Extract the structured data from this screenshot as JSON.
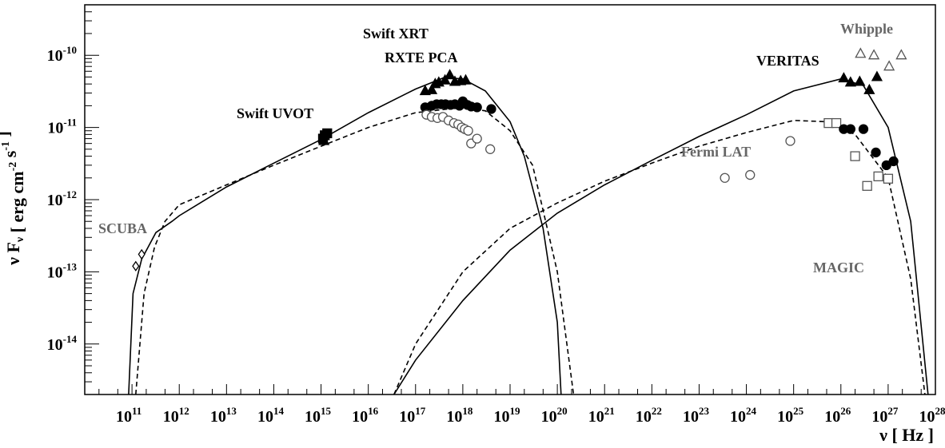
{
  "chart_data": {
    "type": "scatter",
    "xscale": "log",
    "yscale": "log",
    "xlim": [
      10000000000.0,
      1e+28
    ],
    "ylim": [
      2e-15,
      5e-10
    ],
    "grid": false,
    "legend": "none",
    "xlabel": "ν [ Hz ]",
    "ylabel": "ν F_ν [ erg cm^-2 s^-1 ]",
    "x_ticks": [
      {
        "exp": 11,
        "label": "10",
        "sup": "11"
      },
      {
        "exp": 12,
        "label": "10",
        "sup": "12"
      },
      {
        "exp": 13,
        "label": "10",
        "sup": "13"
      },
      {
        "exp": 14,
        "label": "10",
        "sup": "14"
      },
      {
        "exp": 15,
        "label": "10",
        "sup": "15"
      },
      {
        "exp": 16,
        "label": "10",
        "sup": "16"
      },
      {
        "exp": 17,
        "label": "10",
        "sup": "17"
      },
      {
        "exp": 18,
        "label": "10",
        "sup": "18"
      },
      {
        "exp": 19,
        "label": "10",
        "sup": "19"
      },
      {
        "exp": 20,
        "label": "10",
        "sup": "20"
      },
      {
        "exp": 21,
        "label": "10",
        "sup": "21"
      },
      {
        "exp": 22,
        "label": "10",
        "sup": "22"
      },
      {
        "exp": 23,
        "label": "10",
        "sup": "23"
      },
      {
        "exp": 24,
        "label": "10",
        "sup": "24"
      },
      {
        "exp": 25,
        "label": "10",
        "sup": "25"
      },
      {
        "exp": 26,
        "label": "10",
        "sup": "26"
      },
      {
        "exp": 27,
        "label": "10",
        "sup": "27"
      },
      {
        "exp": 28,
        "label": "10",
        "sup": "28"
      }
    ],
    "y_ticks": [
      {
        "exp": -14,
        "label": "10",
        "sup": "-14"
      },
      {
        "exp": -13,
        "label": "10",
        "sup": "-13"
      },
      {
        "exp": -12,
        "label": "10",
        "sup": "-12"
      },
      {
        "exp": -11,
        "label": "10",
        "sup": "-11"
      },
      {
        "exp": -10,
        "label": "10",
        "sup": "-10"
      }
    ],
    "annotations": [
      {
        "text": "SCUBA",
        "color": "#666666"
      },
      {
        "text": "Swift UVOT",
        "color": "#000000"
      },
      {
        "text": "Swift XRT",
        "color": "#000000"
      },
      {
        "text": "RXTE PCA",
        "color": "#000000"
      },
      {
        "text": "Fermi LAT",
        "color": "#666666"
      },
      {
        "text": "VERITAS",
        "color": "#000000"
      },
      {
        "text": "Whipple",
        "color": "#666666"
      },
      {
        "text": "MAGIC",
        "color": "#666666"
      }
    ],
    "series": [
      {
        "marker": "diamond-open",
        "color": "#000000",
        "points": [
          [
            120000000000.0,
            1.2e-13
          ],
          [
            160000000000.0,
            1.75e-13
          ]
        ]
      },
      {
        "marker": "square-filled",
        "color": "#000000",
        "points": [
          [
            1100000000000000.0,
            7e-12
          ],
          [
            1200000000000000.0,
            7.8e-12
          ],
          [
            1350000000000000.0,
            8.3e-12
          ]
        ]
      },
      {
        "marker": "triangle-filled",
        "color": "#000000",
        "points": [
          [
            1150000000000000.0,
            6.5e-12
          ],
          [
            1.6e+17,
            3.2e-11
          ],
          [
            2.2e+17,
            3.3e-11
          ],
          [
            2.6e+17,
            4e-11
          ],
          [
            3.1e+17,
            4.2e-11
          ],
          [
            4.2e+17,
            4.5e-11
          ],
          [
            5.3e+17,
            5.3e-11
          ],
          [
            6.8e+17,
            4.3e-11
          ],
          [
            9e+17,
            4.4e-11
          ],
          [
            1.15e+18,
            4.5e-11
          ]
        ]
      },
      {
        "marker": "circle-filled",
        "color": "#000000",
        "points": [
          [
            1.6e+17,
            1.9e-11
          ],
          [
            2.2e+17,
            2e-11
          ],
          [
            2.8e+17,
            2.1e-11
          ],
          [
            3.5e+17,
            2.1e-11
          ],
          [
            4.3e+17,
            2.1e-11
          ],
          [
            5.5e+17,
            2.05e-11
          ],
          [
            6.8e+17,
            2.1e-11
          ],
          [
            8.5e+17,
            2e-11
          ],
          [
            1e+18,
            2.3e-11
          ],
          [
            1.25e+18,
            2.05e-11
          ],
          [
            1.5e+18,
            1.95e-11
          ],
          [
            2e+18,
            1.9e-11
          ],
          [
            4e+18,
            1.8e-11
          ]
        ]
      },
      {
        "marker": "circle-open",
        "color": "#555555",
        "points": [
          [
            1.7e+17,
            1.5e-11
          ],
          [
            2.2e+17,
            1.4e-11
          ],
          [
            2.9e+17,
            1.35e-11
          ],
          [
            3.8e+17,
            1.4e-11
          ],
          [
            5e+17,
            1.25e-11
          ],
          [
            6.5e+17,
            1.15e-11
          ],
          [
            8e+17,
            1.1e-11
          ],
          [
            9.5e+17,
            1e-11
          ],
          [
            1.1e+18,
            9.5e-12
          ],
          [
            1.3e+18,
            9e-12
          ],
          [
            1.5e+18,
            6e-12
          ],
          [
            2e+18,
            7e-12
          ],
          [
            3.8e+18,
            5e-12
          ]
        ]
      },
      {
        "marker": "circle-open",
        "color": "#555555",
        "points": [
          [
            3.5e+23,
            2e-12
          ],
          [
            1.2e+24,
            2.2e-12
          ],
          [
            8.5e+24,
            6.5e-12
          ]
        ]
      },
      {
        "marker": "square-open",
        "color": "#555555",
        "points": [
          [
            5.5e+25,
            1.15e-11
          ],
          [
            8e+25,
            1.15e-11
          ],
          [
            2e+26,
            4e-12
          ],
          [
            3.6e+26,
            1.55e-12
          ],
          [
            6.2e+26,
            2.1e-12
          ],
          [
            1e+27,
            1.95e-12
          ]
        ]
      },
      {
        "marker": "circle-filled",
        "color": "#000000",
        "points": [
          [
            1.15e+26,
            9.5e-12
          ],
          [
            1.6e+26,
            9.5e-12
          ],
          [
            3e+26,
            9.5e-12
          ],
          [
            5.5e+26,
            4.5e-12
          ],
          [
            9.2e+26,
            3e-12
          ],
          [
            1.3e+27,
            3.4e-12
          ]
        ]
      },
      {
        "marker": "triangle-filled",
        "color": "#000000",
        "points": [
          [
            1.15e+26,
            4.8e-11
          ],
          [
            1.6e+26,
            4.2e-11
          ],
          [
            2.5e+26,
            4.3e-11
          ],
          [
            4e+26,
            3.3e-11
          ],
          [
            5.8e+26,
            5e-11
          ]
        ]
      },
      {
        "marker": "triangle-open",
        "color": "#555555",
        "points": [
          [
            2.6e+26,
            1.05e-10
          ],
          [
            5e+26,
            1e-10
          ],
          [
            1.05e+27,
            7e-11
          ],
          [
            1.9e+27,
            1e-10
          ]
        ]
      }
    ],
    "model_curves": [
      {
        "style": "solid",
        "points": [
          [
            85000000000.0,
            2e-15
          ],
          [
            105000000000.0,
            5e-14
          ],
          [
            160000000000.0,
            1.5e-13
          ],
          [
            320000000000.0,
            3.5e-13
          ],
          [
            700000000000.0,
            5e-13
          ],
          [
            1000000000000.0,
            6e-13
          ],
          [
            10000000000000.0,
            1.5e-12
          ],
          [
            100000000000000.0,
            3.2e-12
          ],
          [
            1000000000000000.0,
            6.8e-12
          ],
          [
            1e+16,
            1.6e-11
          ],
          [
            1e+17,
            3.4e-11
          ],
          [
            4e+17,
            4.9e-11
          ],
          [
            1e+18,
            4.7e-11
          ],
          [
            3e+18,
            3.2e-11
          ],
          [
            1e+19,
            1.2e-11
          ],
          [
            2e+19,
            4e-12
          ],
          [
            5e+19,
            4e-13
          ],
          [
            1e+20,
            2e-14
          ],
          [
            1.2e+20,
            2e-15
          ]
        ]
      },
      {
        "style": "dashed",
        "points": [
          [
            120000000000.0,
            2e-15
          ],
          [
            180000000000.0,
            5e-14
          ],
          [
            300000000000.0,
            2.2e-13
          ],
          [
            500000000000.0,
            5e-13
          ],
          [
            1000000000000.0,
            8.5e-13
          ],
          [
            10000000000000.0,
            1.6e-12
          ],
          [
            100000000000000.0,
            3e-12
          ],
          [
            1000000000000000.0,
            5.5e-12
          ],
          [
            1e+16,
            1e-11
          ],
          [
            1e+17,
            1.6e-11
          ],
          [
            1e+18,
            1.9e-11
          ],
          [
            3e+18,
            1.7e-11
          ],
          [
            1e+19,
            9e-12
          ],
          [
            3e+19,
            3e-12
          ],
          [
            1e+20,
            1e-13
          ],
          [
            2.2e+20,
            2e-15
          ]
        ]
      },
      {
        "style": "solid",
        "points": [
          [
            3.5e+16,
            2e-15
          ],
          [
            1e+17,
            6e-15
          ],
          [
            1e+18,
            4e-14
          ],
          [
            1e+19,
            2e-13
          ],
          [
            1e+20,
            6.5e-13
          ],
          [
            1e+21,
            1.6e-12
          ],
          [
            1e+22,
            3.5e-12
          ],
          [
            1e+23,
            7.5e-12
          ],
          [
            1e+24,
            1.5e-11
          ],
          [
            1e+25,
            3.2e-11
          ],
          [
            1e+26,
            4.7e-11
          ],
          [
            3e+26,
            3.8e-11
          ],
          [
            1e+27,
            1e-11
          ],
          [
            3e+27,
            5e-13
          ],
          [
            7e+27,
            2e-15
          ]
        ]
      },
      {
        "style": "dashed",
        "points": [
          [
            3.5e+16,
            2e-15
          ],
          [
            1e+17,
            1e-14
          ],
          [
            1e+18,
            1e-13
          ],
          [
            1e+19,
            4e-13
          ],
          [
            1e+20,
            9e-13
          ],
          [
            1e+21,
            1.8e-12
          ],
          [
            1e+22,
            3.2e-12
          ],
          [
            1e+23,
            5.5e-12
          ],
          [
            1e+24,
            8.5e-12
          ],
          [
            1e+25,
            1.25e-11
          ],
          [
            5e+25,
            1.2e-11
          ],
          [
            2e+26,
            8e-12
          ],
          [
            1e+27,
            2e-12
          ],
          [
            3e+27,
            8e-14
          ],
          [
            6e+27,
            2e-15
          ]
        ]
      }
    ]
  }
}
